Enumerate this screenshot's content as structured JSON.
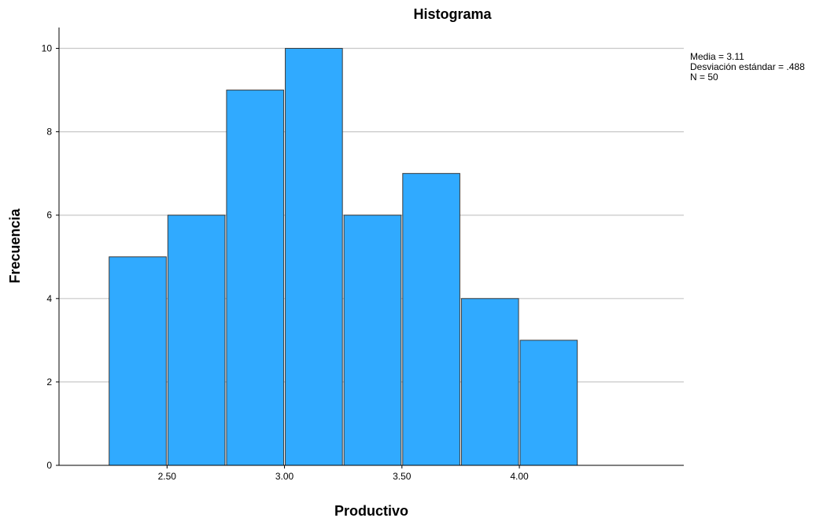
{
  "chart_data": {
    "type": "bar",
    "title": "Histograma",
    "xlabel": "Productivo",
    "ylabel": "Frecuencia",
    "bins": [
      {
        "from": 2.25,
        "to": 2.5,
        "count": 5
      },
      {
        "from": 2.5,
        "to": 2.75,
        "count": 6
      },
      {
        "from": 2.75,
        "to": 3.0,
        "count": 9
      },
      {
        "from": 3.0,
        "to": 3.25,
        "count": 10
      },
      {
        "from": 3.25,
        "to": 3.5,
        "count": 6
      },
      {
        "from": 3.5,
        "to": 3.75,
        "count": 7
      },
      {
        "from": 3.75,
        "to": 4.0,
        "count": 4
      },
      {
        "from": 4.0,
        "to": 4.25,
        "count": 3
      }
    ],
    "x_ticks": [
      "2.50",
      "3.00",
      "3.50",
      "4.00"
    ],
    "x_tick_values": [
      2.5,
      3.0,
      3.5,
      4.0
    ],
    "y_ticks": [
      "0",
      "2",
      "4",
      "6",
      "8",
      "10"
    ],
    "y_tick_values": [
      0,
      2,
      4,
      6,
      8,
      10
    ],
    "xlim": [
      2.04,
      4.7
    ],
    "ylim": [
      0,
      10.5
    ],
    "grid": true,
    "stats": {
      "media": "Media = 3.11",
      "desviacion": "Desviación estándar = .488",
      "n": "N = 50"
    },
    "colors": {
      "bar_fill": "#30aaff",
      "bar_stroke": "#3a3a3a",
      "grid": "#c8c8c8"
    }
  }
}
